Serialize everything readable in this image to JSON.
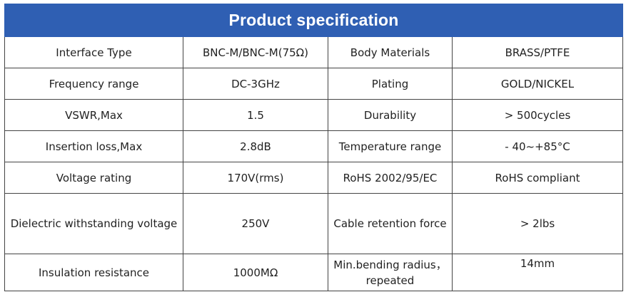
{
  "title": "Product specification",
  "rows": [
    {
      "label1": "Interface Type",
      "value1": "BNC-M/BNC-M(75Ω)",
      "label2": "Body Materials",
      "value2": "BRASS/PTFE"
    },
    {
      "label1": "Frequency range",
      "value1": "DC-3GHz",
      "label2": "Plating",
      "value2": "GOLD/NICKEL"
    },
    {
      "label1": "VSWR,Max",
      "value1": "1.5",
      "label2": "Durability",
      "value2": "> 500cycles"
    },
    {
      "label1": "Insertion loss,Max",
      "value1": "2.8dB",
      "label2": "Temperature range",
      "value2": "- 40~+85°C"
    },
    {
      "label1": "Voltage rating",
      "value1": "170V(rms)",
      "label2": "RoHS 2002/95/EC",
      "value2": "RoHS compliant"
    },
    {
      "label1": "Dielectric withstanding voltage",
      "value1": "250V",
      "label2": "Cable retention force",
      "value2": "> 2lbs"
    },
    {
      "label1": "Insulation resistance",
      "value1": "1000MΩ",
      "label2": "Min.bending radius，repeated",
      "value2": "14mm"
    }
  ]
}
